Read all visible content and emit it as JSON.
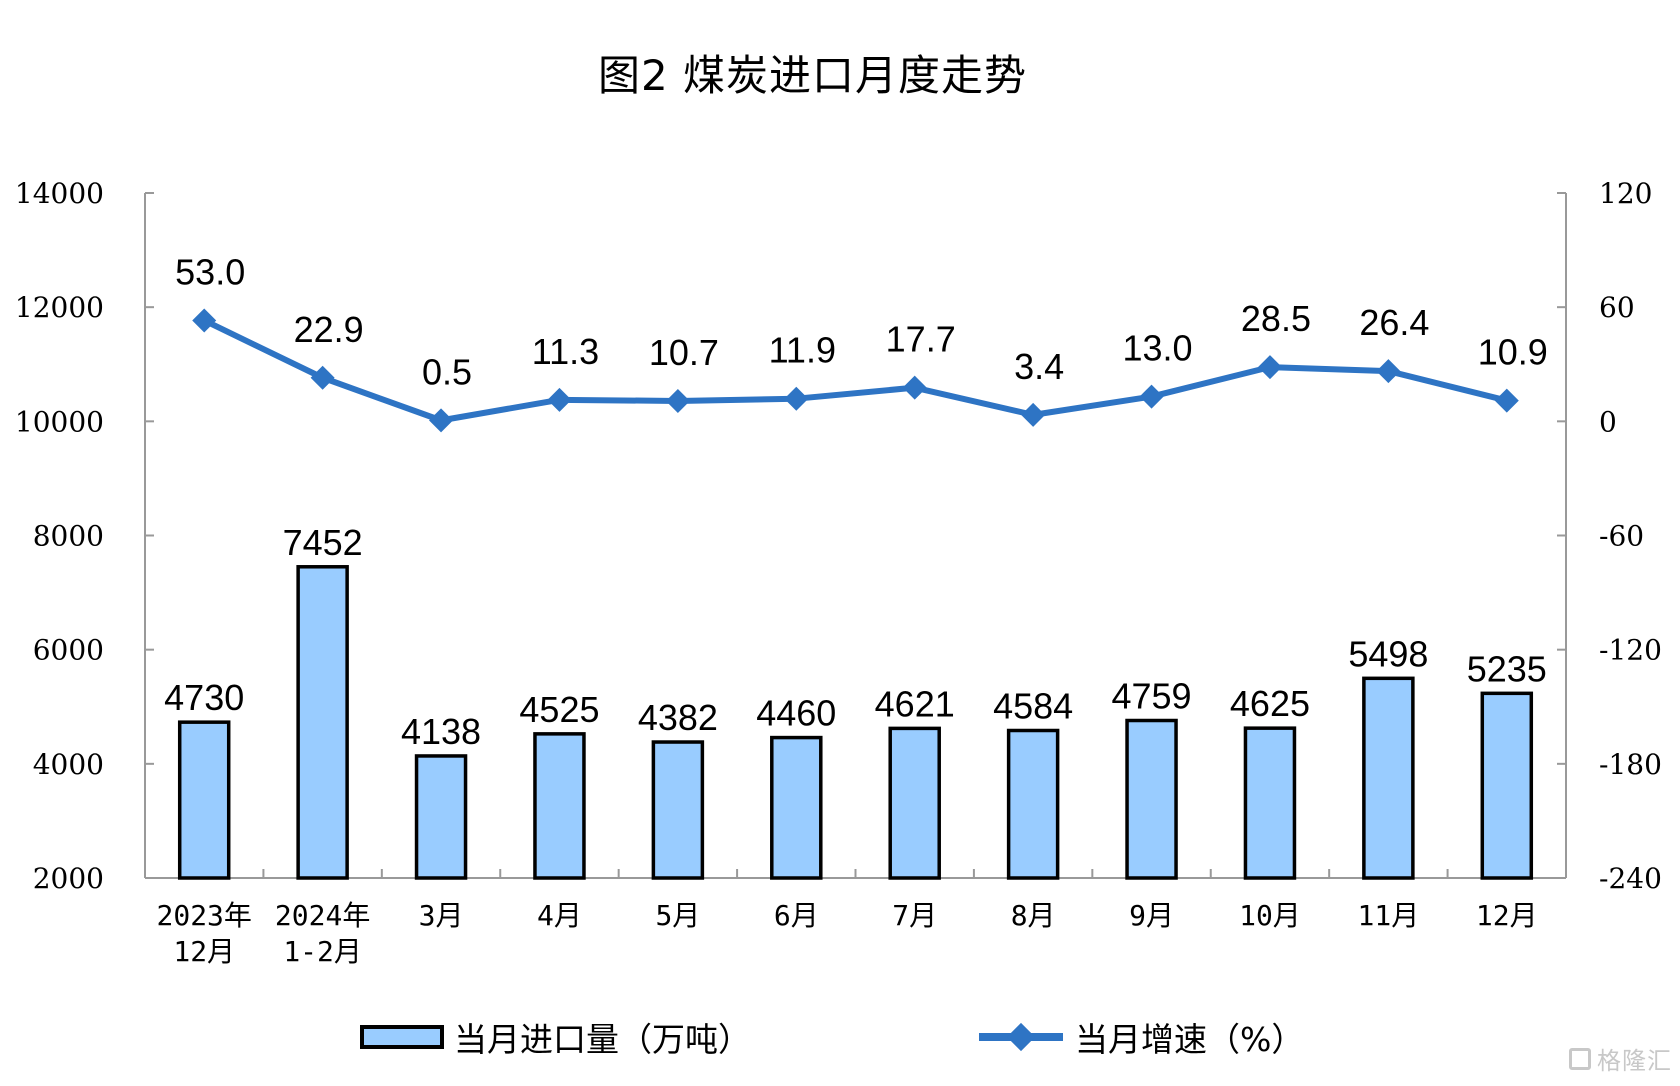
{
  "title": "图2  煤炭进口月度走势",
  "legend": {
    "bar_label": "当月进口量（万吨）",
    "line_label": "当月增速（%）"
  },
  "watermark": "格隆汇",
  "colors": {
    "bar_fill": "#99ccff",
    "bar_stroke": "#000000",
    "line": "#2e74c4",
    "axis": "#999999"
  },
  "chart_data": {
    "type": "bar+line",
    "title": "图2  煤炭进口月度走势",
    "categories": [
      "2023年\n12月",
      "2024年\n1-2月",
      "3月",
      "4月",
      "5月",
      "6月",
      "7月",
      "8月",
      "9月",
      "10月",
      "11月",
      "12月"
    ],
    "category_lines": [
      [
        "2023年",
        "12月"
      ],
      [
        "2024年",
        "1-2月"
      ],
      [
        "3月"
      ],
      [
        "4月"
      ],
      [
        "5月"
      ],
      [
        "6月"
      ],
      [
        "7月"
      ],
      [
        "8月"
      ],
      [
        "9月"
      ],
      [
        "10月"
      ],
      [
        "11月"
      ],
      [
        "12月"
      ]
    ],
    "series": [
      {
        "name": "当月进口量（万吨）",
        "type": "bar",
        "axis": "left",
        "values": [
          4730,
          7452,
          4138,
          4525,
          4382,
          4460,
          4621,
          4584,
          4759,
          4625,
          5498,
          5235
        ],
        "labels": [
          "4730",
          "7452",
          "4138",
          "4525",
          "4382",
          "4460",
          "4621",
          "4584",
          "4759",
          "4625",
          "5498",
          "5235"
        ]
      },
      {
        "name": "当月增速（%）",
        "type": "line",
        "axis": "right",
        "values": [
          53.0,
          22.9,
          0.5,
          11.3,
          10.7,
          11.9,
          17.7,
          3.4,
          13.0,
          28.5,
          26.4,
          10.9
        ],
        "labels": [
          "53.0",
          "22.9",
          "0.5",
          "11.3",
          "10.7",
          "11.9",
          "17.7",
          "3.4",
          "13.0",
          "28.5",
          "26.4",
          "10.9"
        ]
      }
    ],
    "y_left": {
      "label": "",
      "ylim": [
        2000,
        14000
      ],
      "ticks": [
        "14000",
        "12000",
        "10000",
        "8000",
        "6000",
        "4000",
        "2000"
      ]
    },
    "y_right": {
      "label": "",
      "ylim": [
        -240,
        120
      ],
      "ticks": [
        "120",
        "60",
        "0",
        "-60",
        "-120",
        "-180",
        "-240"
      ]
    },
    "xlabel": "",
    "grid": false,
    "legend_position": "bottom"
  }
}
